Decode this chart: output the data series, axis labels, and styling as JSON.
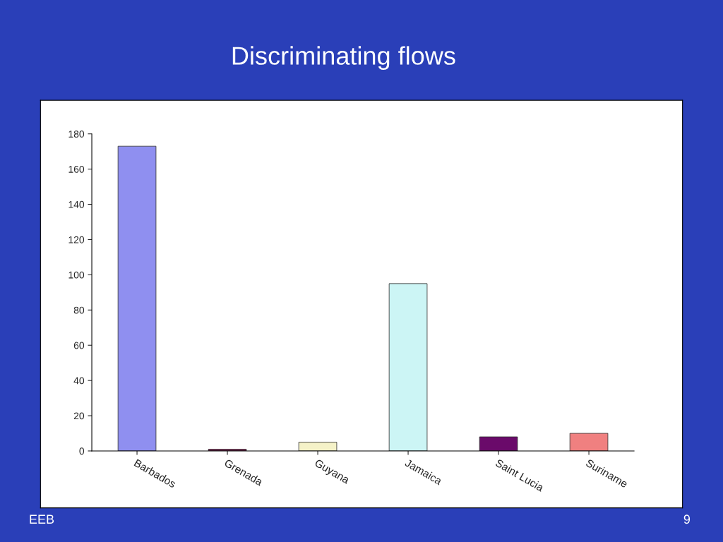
{
  "chart_data": {
    "type": "bar",
    "title": "Discriminating flows",
    "categories": [
      "Barbados",
      "Grenada",
      "Guyana",
      "Jamaica",
      "Saint Lucia",
      "Suriname"
    ],
    "values": [
      173,
      1,
      5,
      95,
      8,
      10
    ],
    "colors": [
      "#8f8ff0",
      "#7b2050",
      "#f5f2c8",
      "#ccf5f5",
      "#6a0a6a",
      "#f08080"
    ],
    "ylim": [
      0,
      180
    ],
    "yticks": [
      0,
      20,
      40,
      60,
      80,
      100,
      120,
      140,
      160,
      180
    ],
    "grid": false,
    "legend": false,
    "annotations": [
      "EEB",
      "9"
    ]
  }
}
